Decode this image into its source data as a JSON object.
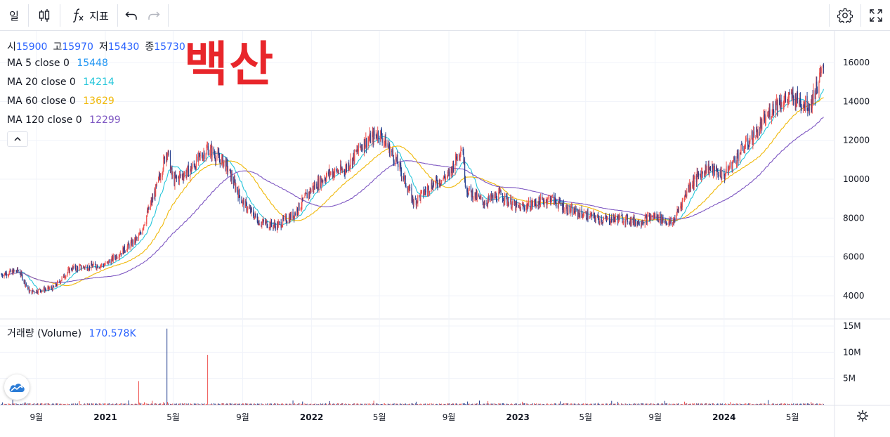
{
  "toolbar": {
    "interval_label": "일",
    "indicators_label": "지표",
    "icons": [
      "candles-icon",
      "fx-icon",
      "undo-icon",
      "redo-icon",
      "settings-icon",
      "fullscreen-icon"
    ]
  },
  "watermark": "백산",
  "ohlc": {
    "o_label": "시",
    "o": "15900",
    "h_label": "고",
    "h": "15970",
    "l_label": "저",
    "l": "15430",
    "c_label": "종",
    "c": "15730",
    "color": "#2962ff"
  },
  "ma": [
    {
      "label": "MA 5 close 0",
      "value": "15448",
      "color": "#2196f3"
    },
    {
      "label": "MA 20 close 0",
      "value": "14214",
      "color": "#26c6da"
    },
    {
      "label": "MA 60 close 0",
      "value": "13629",
      "color": "#f0b90b"
    },
    {
      "label": "MA 120 close 0",
      "value": "12299",
      "color": "#7e57c2"
    }
  ],
  "volume_legend": {
    "label": "거래량 (Volume)",
    "value": "170.578K",
    "color": "#2962ff"
  },
  "chart_data": {
    "type": "candlestick",
    "price_axis": {
      "ticks": [
        "4000",
        "6000",
        "8000",
        "10000",
        "12000",
        "14000",
        "16000"
      ],
      "range": [
        3000,
        16500
      ]
    },
    "volume_axis": {
      "ticks": [
        "5M",
        "10M",
        "15M"
      ],
      "range": [
        0,
        15000000
      ]
    },
    "time_axis": [
      "9월",
      "2021",
      "5월",
      "9월",
      "2022",
      "5월",
      "9월",
      "2023",
      "5월",
      "9월",
      "2024",
      "5월"
    ],
    "year_labels": [
      "2021",
      "2022",
      "2023",
      "2024"
    ],
    "colors": {
      "up": "#ef5350",
      "down": "#26418f"
    },
    "close_keypoints": [
      {
        "date": "2020-07",
        "value": 5100
      },
      {
        "date": "2020-08",
        "value": 5300
      },
      {
        "date": "2020-08-20",
        "value": 4200
      },
      {
        "date": "2020-10",
        "value": 4400
      },
      {
        "date": "2020-11",
        "value": 5400
      },
      {
        "date": "2021-01",
        "value": 5600
      },
      {
        "date": "2021-03",
        "value": 7000
      },
      {
        "date": "2021-04",
        "value": 9500
      },
      {
        "date": "2021-04-20",
        "value": 11500
      },
      {
        "date": "2021-05",
        "value": 9900
      },
      {
        "date": "2021-06",
        "value": 10500
      },
      {
        "date": "2021-07",
        "value": 11600
      },
      {
        "date": "2021-08",
        "value": 10800
      },
      {
        "date": "2021-09",
        "value": 8800
      },
      {
        "date": "2021-10",
        "value": 7800
      },
      {
        "date": "2021-11",
        "value": 7600
      },
      {
        "date": "2021-12",
        "value": 8200
      },
      {
        "date": "2022-01",
        "value": 9500
      },
      {
        "date": "2022-02",
        "value": 10300
      },
      {
        "date": "2022-03",
        "value": 10500
      },
      {
        "date": "2022-04",
        "value": 11800
      },
      {
        "date": "2022-05",
        "value": 12400
      },
      {
        "date": "2022-06",
        "value": 10900
      },
      {
        "date": "2022-07",
        "value": 8800
      },
      {
        "date": "2022-08",
        "value": 9700
      },
      {
        "date": "2022-09",
        "value": 10200
      },
      {
        "date": "2022-09-25",
        "value": 11800
      },
      {
        "date": "2022-10",
        "value": 9500
      },
      {
        "date": "2022-11",
        "value": 8800
      },
      {
        "date": "2022-12",
        "value": 9200
      },
      {
        "date": "2023-01",
        "value": 8500
      },
      {
        "date": "2023-03",
        "value": 9000
      },
      {
        "date": "2023-04",
        "value": 8400
      },
      {
        "date": "2023-06",
        "value": 7900
      },
      {
        "date": "2023-07",
        "value": 8000
      },
      {
        "date": "2023-08",
        "value": 7800
      },
      {
        "date": "2023-09",
        "value": 8100
      },
      {
        "date": "2023-10",
        "value": 7700
      },
      {
        "date": "2023-11",
        "value": 9700
      },
      {
        "date": "2023-12",
        "value": 10600
      },
      {
        "date": "2024-01",
        "value": 10200
      },
      {
        "date": "2024-02",
        "value": 11500
      },
      {
        "date": "2024-03",
        "value": 12500
      },
      {
        "date": "2024-04",
        "value": 13900
      },
      {
        "date": "2024-05",
        "value": 14200
      },
      {
        "date": "2024-06",
        "value": 13800
      },
      {
        "date": "2024-06-25",
        "value": 15730
      }
    ],
    "volume_spikes": [
      {
        "date": "2021-03",
        "value": 4500000
      },
      {
        "date": "2021-04-20",
        "value": 14500000
      },
      {
        "date": "2021-04-25",
        "value": 5000000
      },
      {
        "date": "2021-07",
        "value": 9500000
      },
      {
        "date": "2021-08",
        "value": 3700000
      }
    ]
  }
}
